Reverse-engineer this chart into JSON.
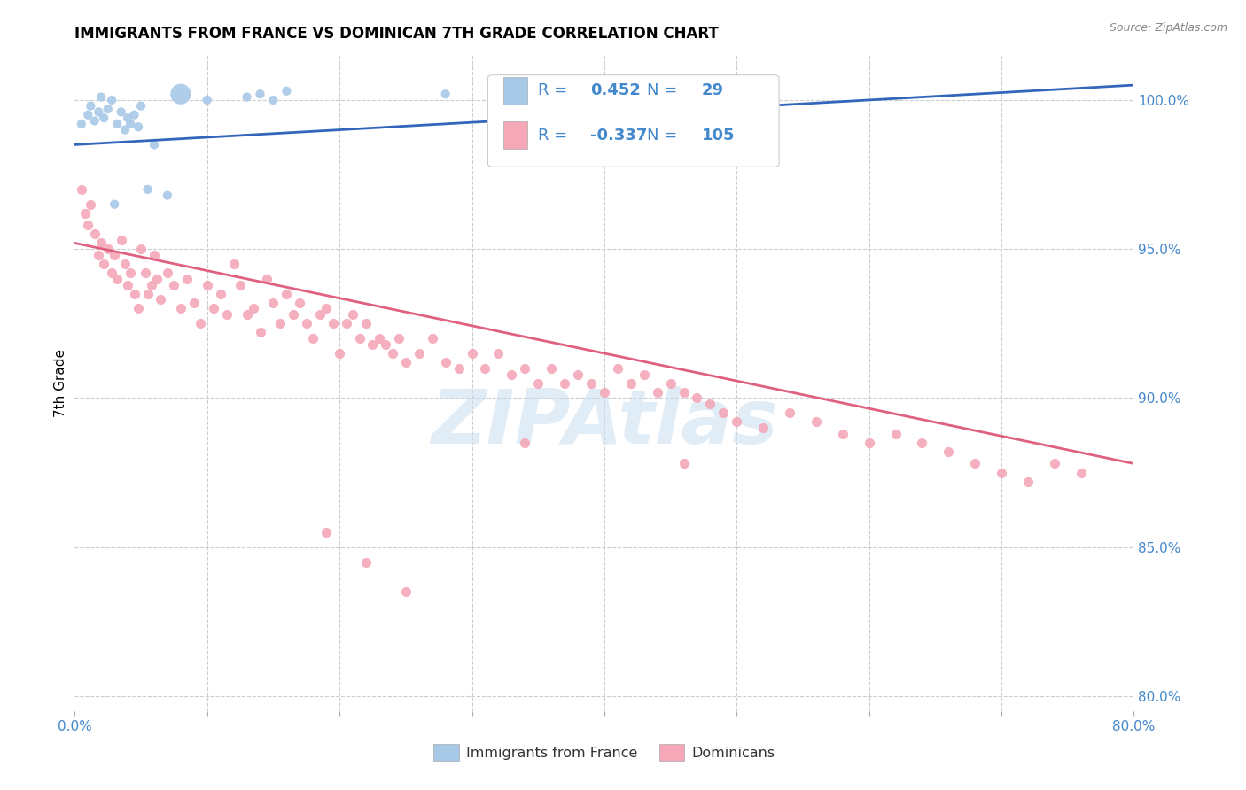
{
  "title": "IMMIGRANTS FROM FRANCE VS DOMINICAN 7TH GRADE CORRELATION CHART",
  "source": "Source: ZipAtlas.com",
  "ylabel": "7th Grade",
  "france_R": 0.452,
  "france_N": 29,
  "dominican_R": -0.337,
  "dominican_N": 105,
  "france_color": "#a8c8e8",
  "france_line_color": "#3366bb",
  "dominican_color": "#f4a8b8",
  "dominican_line_color": "#e06080",
  "watermark_color": "#c8ddf0",
  "title_fontsize": 12,
  "axis_label_fontsize": 11,
  "tick_label_fontsize": 11,
  "right_tick_color": "#4488cc",
  "grid_color": "#cccccc",
  "background_color": "#ffffff",
  "xlim": [
    0.0,
    80.0
  ],
  "ylim": [
    79.5,
    101.5
  ],
  "xticks": [
    0.0,
    10.0,
    20.0,
    30.0,
    40.0,
    50.0,
    60.0,
    70.0,
    80.0
  ],
  "yticks": [
    80.0,
    85.0,
    90.0,
    95.0,
    100.0
  ],
  "france_scatter_x": [
    0.5,
    1.0,
    1.2,
    1.5,
    1.8,
    2.0,
    2.2,
    2.5,
    2.8,
    3.0,
    3.2,
    3.5,
    3.8,
    4.0,
    4.2,
    4.5,
    4.8,
    5.0,
    5.5,
    6.0,
    7.0,
    8.0,
    10.0,
    13.0,
    14.0,
    15.0,
    16.0,
    28.0,
    38.0
  ],
  "france_scatter_y": [
    99.2,
    99.5,
    99.8,
    99.3,
    99.6,
    100.1,
    99.4,
    99.7,
    100.0,
    96.5,
    99.2,
    99.6,
    99.0,
    99.4,
    99.2,
    99.5,
    99.1,
    99.8,
    97.0,
    98.5,
    96.8,
    100.2,
    100.0,
    100.1,
    100.2,
    100.0,
    100.3,
    100.2,
    100.2
  ],
  "france_scatter_sizes": [
    55,
    55,
    55,
    55,
    55,
    55,
    55,
    55,
    55,
    55,
    55,
    55,
    55,
    55,
    55,
    55,
    55,
    55,
    55,
    55,
    55,
    280,
    55,
    55,
    55,
    55,
    55,
    55,
    55
  ],
  "dominican_scatter_x": [
    0.5,
    0.8,
    1.0,
    1.2,
    1.5,
    1.8,
    2.0,
    2.2,
    2.5,
    2.8,
    3.0,
    3.2,
    3.5,
    3.8,
    4.0,
    4.2,
    4.5,
    4.8,
    5.0,
    5.3,
    5.5,
    5.8,
    6.0,
    6.2,
    6.5,
    7.0,
    7.5,
    8.0,
    8.5,
    9.0,
    9.5,
    10.0,
    10.5,
    11.0,
    11.5,
    12.0,
    12.5,
    13.0,
    13.5,
    14.0,
    14.5,
    15.0,
    15.5,
    16.0,
    16.5,
    17.0,
    17.5,
    18.0,
    18.5,
    19.0,
    19.5,
    20.0,
    20.5,
    21.0,
    21.5,
    22.0,
    22.5,
    23.0,
    23.5,
    24.0,
    24.5,
    25.0,
    26.0,
    27.0,
    28.0,
    29.0,
    30.0,
    31.0,
    32.0,
    33.0,
    34.0,
    35.0,
    36.0,
    37.0,
    38.0,
    39.0,
    40.0,
    41.0,
    42.0,
    43.0,
    44.0,
    45.0,
    46.0,
    47.0,
    48.0,
    49.0,
    50.0,
    52.0,
    54.0,
    56.0,
    58.0,
    60.0,
    62.0,
    64.0,
    66.0,
    68.0,
    70.0,
    72.0,
    74.0,
    76.0,
    25.0,
    22.0,
    19.0,
    34.0,
    46.0
  ],
  "dominican_scatter_y": [
    97.0,
    96.2,
    95.8,
    96.5,
    95.5,
    94.8,
    95.2,
    94.5,
    95.0,
    94.2,
    94.8,
    94.0,
    95.3,
    94.5,
    93.8,
    94.2,
    93.5,
    93.0,
    95.0,
    94.2,
    93.5,
    93.8,
    94.8,
    94.0,
    93.3,
    94.2,
    93.8,
    93.0,
    94.0,
    93.2,
    92.5,
    93.8,
    93.0,
    93.5,
    92.8,
    94.5,
    93.8,
    92.8,
    93.0,
    92.2,
    94.0,
    93.2,
    92.5,
    93.5,
    92.8,
    93.2,
    92.5,
    92.0,
    92.8,
    93.0,
    92.5,
    91.5,
    92.5,
    92.8,
    92.0,
    92.5,
    91.8,
    92.0,
    91.8,
    91.5,
    92.0,
    91.2,
    91.5,
    92.0,
    91.2,
    91.0,
    91.5,
    91.0,
    91.5,
    90.8,
    91.0,
    90.5,
    91.0,
    90.5,
    90.8,
    90.5,
    90.2,
    91.0,
    90.5,
    90.8,
    90.2,
    90.5,
    90.2,
    90.0,
    89.8,
    89.5,
    89.2,
    89.0,
    89.5,
    89.2,
    88.8,
    88.5,
    88.8,
    88.5,
    88.2,
    87.8,
    87.5,
    87.2,
    87.8,
    87.5,
    83.5,
    84.5,
    85.5,
    88.5,
    87.8
  ],
  "france_trend_x": [
    0.0,
    80.0
  ],
  "france_trend_y": [
    98.5,
    100.5
  ],
  "dominican_trend_x": [
    0.0,
    80.0
  ],
  "dominican_trend_y": [
    95.2,
    87.8
  ]
}
